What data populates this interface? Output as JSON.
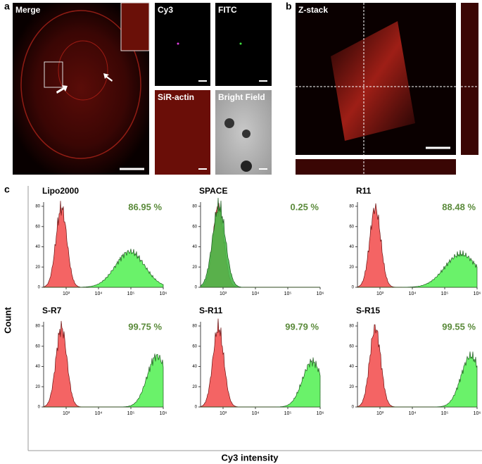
{
  "panels": {
    "a": {
      "label": "a",
      "merge": "Merge",
      "tiles": [
        "Cy3",
        "FITC",
        "SiR-actin",
        "Bright Field"
      ]
    },
    "b": {
      "label": "b",
      "title": "Z-stack"
    },
    "c": {
      "label": "c",
      "y_axis_label": "Count",
      "x_axis_label": "Cy3 intensity",
      "yticks": [
        0,
        20,
        40,
        60,
        80
      ],
      "xticks": [
        "10³",
        "10⁴",
        "10⁵",
        "10⁶"
      ],
      "plots": [
        {
          "title": "Lipo2000",
          "percent": "86.95 %"
        },
        {
          "title": "SPACE",
          "percent": "0.25 %"
        },
        {
          "title": "R11",
          "percent": "88.48 %"
        },
        {
          "title": "S-R7",
          "percent": "99.75 %"
        },
        {
          "title": "S-R11",
          "percent": "99.79 %"
        },
        {
          "title": "S-R15",
          "percent": "99.55 %"
        }
      ]
    }
  }
}
